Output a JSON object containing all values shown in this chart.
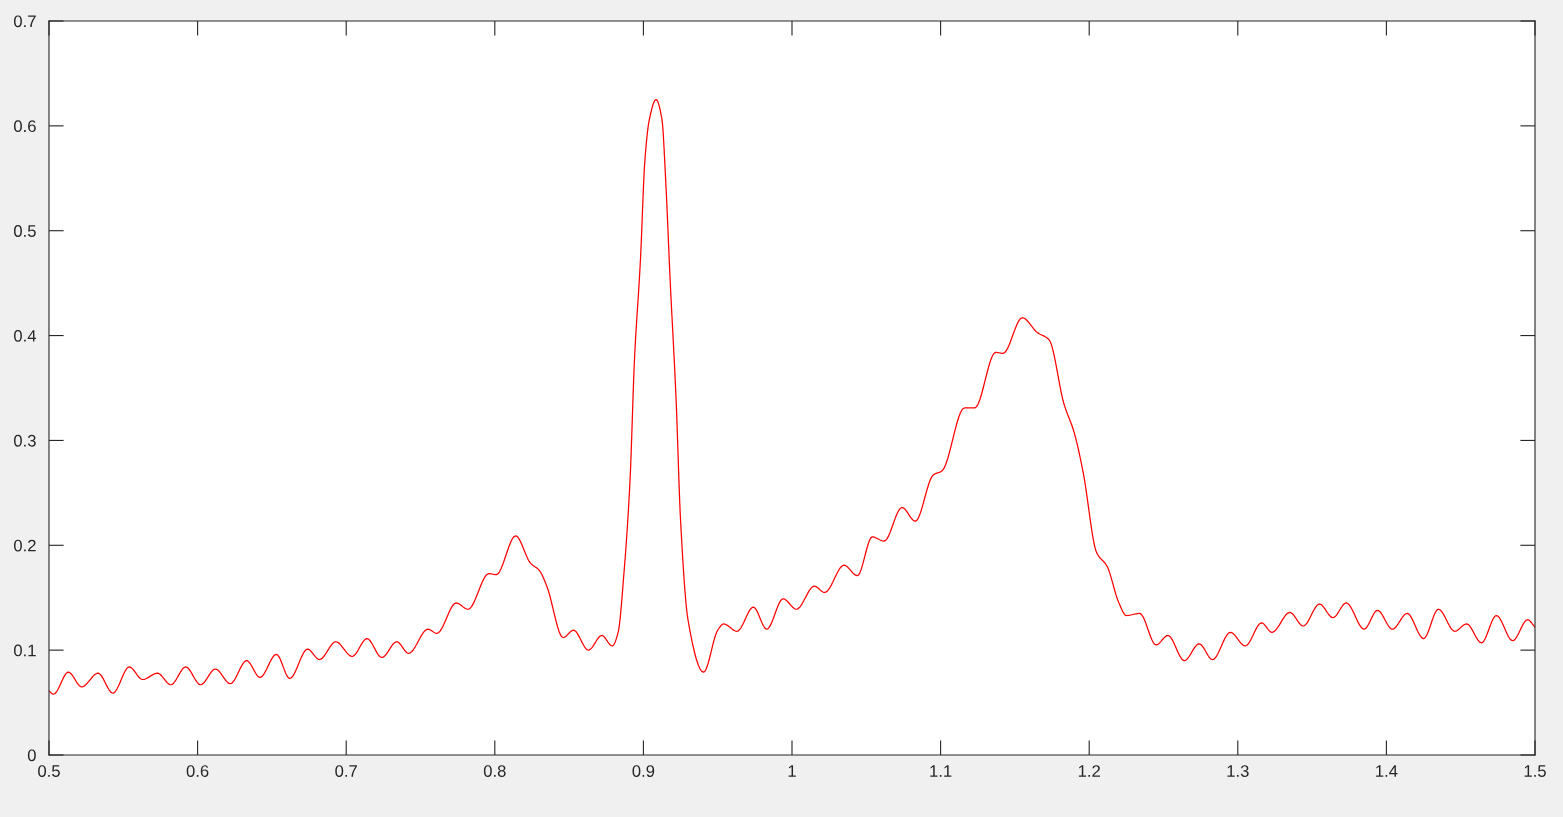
{
  "chart_data": {
    "type": "line",
    "line_style": "solid",
    "xlim": [
      0.5,
      1.5
    ],
    "ylim": [
      0,
      0.7
    ],
    "xticks": [
      0.5,
      0.6,
      0.7,
      0.8,
      0.9,
      1,
      1.1,
      1.2,
      1.3,
      1.4,
      1.5
    ],
    "yticks": [
      0,
      0.1,
      0.2,
      0.3,
      0.4,
      0.5,
      0.6,
      0.7
    ],
    "x": [
      0.5,
      0.503,
      0.513,
      0.522,
      0.533,
      0.543,
      0.554,
      0.563,
      0.573,
      0.582,
      0.592,
      0.602,
      0.612,
      0.622,
      0.633,
      0.642,
      0.653,
      0.662,
      0.674,
      0.682,
      0.693,
      0.704,
      0.714,
      0.724,
      0.734,
      0.742,
      0.755,
      0.761,
      0.774,
      0.782,
      0.796,
      0.801,
      0.814,
      0.824,
      0.83,
      0.835,
      0.846,
      0.853,
      0.863,
      0.872,
      0.879,
      0.883,
      0.887,
      0.891,
      0.894,
      0.898,
      0.901,
      0.904,
      0.9085,
      0.9125,
      0.915,
      0.918,
      0.922,
      0.925,
      0.93,
      0.9405,
      0.95,
      0.954,
      0.963,
      0.974,
      0.983,
      0.994,
      1.003,
      1.015,
      1.022,
      1.035,
      1.044,
      1.054,
      1.062,
      1.074,
      1.083,
      1.095,
      1.101,
      1.116,
      1.123,
      1.137,
      1.142,
      1.155,
      1.165,
      1.173,
      1.183,
      1.19,
      1.196,
      1.205,
      1.212,
      1.22,
      1.225,
      1.234,
      1.245,
      1.253,
      1.264,
      1.274,
      1.283,
      1.295,
      1.305,
      1.316,
      1.323,
      1.335,
      1.344,
      1.355,
      1.364,
      1.373,
      1.385,
      1.394,
      1.404,
      1.414,
      1.425,
      1.435,
      1.446,
      1.454,
      1.464,
      1.474,
      1.485,
      1.495,
      1.5
    ],
    "series": [
      {
        "color": "#ff0000",
        "values": [
          0.061,
          0.058,
          0.079,
          0.065,
          0.078,
          0.059,
          0.084,
          0.072,
          0.078,
          0.067,
          0.084,
          0.067,
          0.082,
          0.068,
          0.09,
          0.074,
          0.096,
          0.073,
          0.101,
          0.091,
          0.108,
          0.094,
          0.111,
          0.093,
          0.108,
          0.097,
          0.12,
          0.116,
          0.145,
          0.139,
          0.173,
          0.172,
          0.209,
          0.183,
          0.176,
          0.161,
          0.112,
          0.119,
          0.1,
          0.114,
          0.104,
          0.117,
          0.175,
          0.262,
          0.377,
          0.472,
          0.567,
          0.606,
          0.625,
          0.606,
          0.548,
          0.453,
          0.339,
          0.224,
          0.129,
          0.079,
          0.119,
          0.125,
          0.118,
          0.141,
          0.12,
          0.149,
          0.139,
          0.161,
          0.155,
          0.181,
          0.171,
          0.208,
          0.204,
          0.236,
          0.223,
          0.267,
          0.271,
          0.331,
          0.331,
          0.384,
          0.383,
          0.417,
          0.403,
          0.396,
          0.335,
          0.307,
          0.269,
          0.193,
          0.18,
          0.145,
          0.133,
          0.135,
          0.105,
          0.114,
          0.09,
          0.106,
          0.091,
          0.117,
          0.104,
          0.126,
          0.117,
          0.136,
          0.123,
          0.144,
          0.131,
          0.145,
          0.12,
          0.138,
          0.12,
          0.135,
          0.111,
          0.139,
          0.118,
          0.125,
          0.107,
          0.133,
          0.109,
          0.129,
          0.122
        ]
      }
    ]
  }
}
